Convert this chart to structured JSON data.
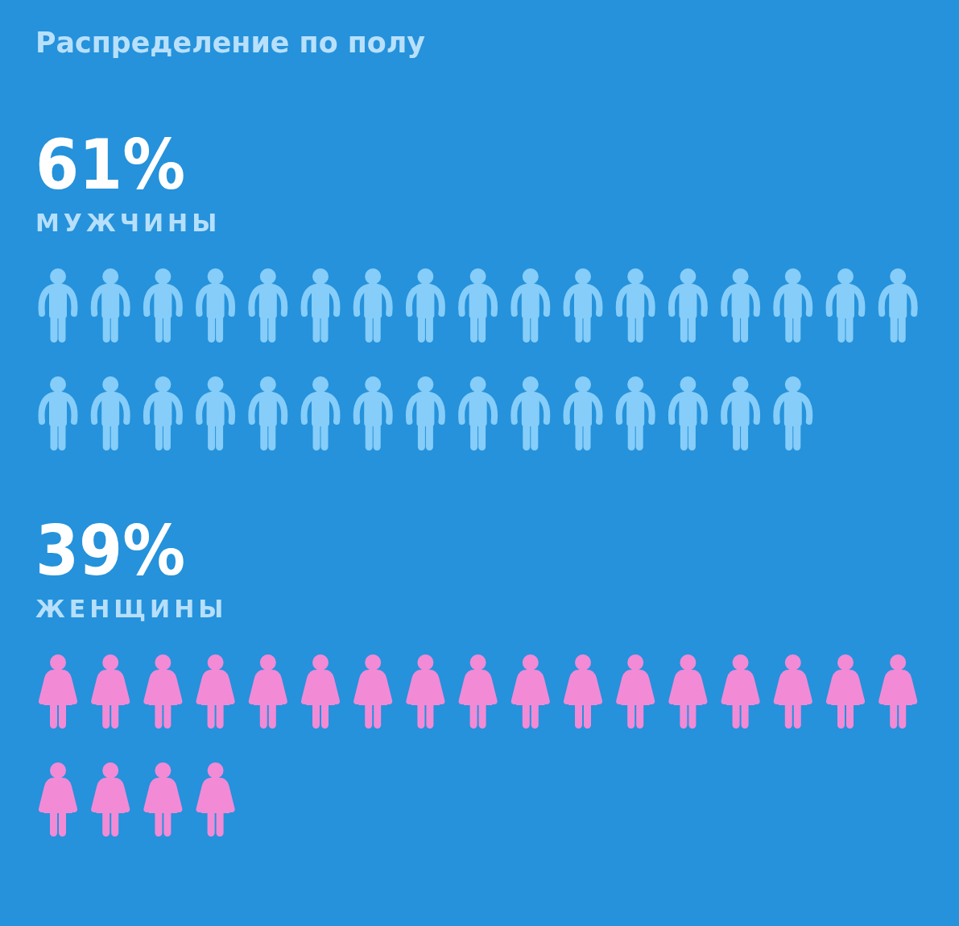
{
  "chart_data": {
    "type": "other",
    "title": "Распределение по полу",
    "categories": [
      "МУЖЧИНЫ",
      "ЖЕНЩИНЫ"
    ],
    "values": [
      61,
      39
    ],
    "value_labels": [
      "61%",
      "39%"
    ],
    "colors": [
      "#86cdf9",
      "#f28ad6"
    ]
  }
}
